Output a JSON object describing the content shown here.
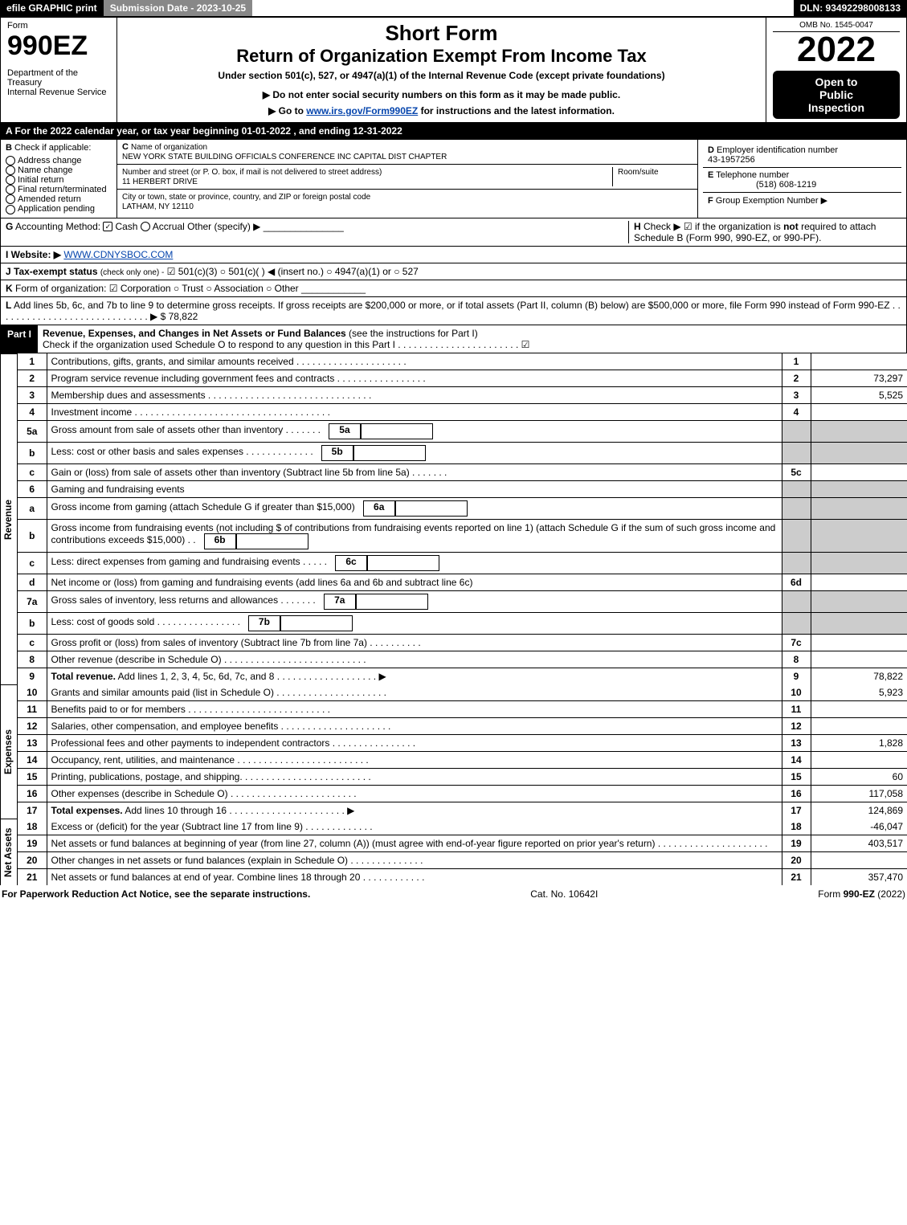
{
  "colors": {
    "black": "#000000",
    "white": "#ffffff",
    "gray_header": "#888888",
    "gray_fill": "#cccccc",
    "link": "#0645ad"
  },
  "topbar": {
    "efile": "efile GRAPHIC print",
    "sub_label": "Submission Date - 2023-10-25",
    "dln": "DLN: 93492298008133"
  },
  "header": {
    "form_word": "Form",
    "form_num": "990EZ",
    "dept1": "Department of the Treasury",
    "dept2": "Internal Revenue Service",
    "short_form": "Short Form",
    "title": "Return of Organization Exempt From Income Tax",
    "subtitle": "Under section 501(c), 527, or 4947(a)(1) of the Internal Revenue Code (except private foundations)",
    "note1": "▶ Do not enter social security numbers on this form as it may be made public.",
    "note2_pre": "▶ Go to ",
    "note2_link": "www.irs.gov/Form990EZ",
    "note2_post": " for instructions and the latest information.",
    "omb": "OMB No. 1545-0047",
    "year": "2022",
    "open1": "Open to",
    "open2": "Public",
    "open3": "Inspection"
  },
  "line_a": "A  For the 2022 calendar year, or tax year beginning 01-01-2022 , and ending 12-31-2022",
  "box_b": {
    "title": "B",
    "subtitle": "Check if applicable:",
    "opts": [
      "Address change",
      "Name change",
      "Initial return",
      "Final return/terminated",
      "Amended return",
      "Application pending"
    ]
  },
  "box_c": {
    "c_label": "C",
    "name_lbl": "Name of organization",
    "name_val": "NEW YORK STATE BUILDING OFFICIALS CONFERENCE INC CAPITAL DIST CHAPTER",
    "street_lbl": "Number and street (or P. O. box, if mail is not delivered to street address)",
    "room_lbl": "Room/suite",
    "street_val": "11 HERBERT DRIVE",
    "city_lbl": "City or town, state or province, country, and ZIP or foreign postal code",
    "city_val": "LATHAM, NY  12110"
  },
  "box_d": {
    "d_label": "D",
    "d_text": "Employer identification number",
    "d_val": "43-1957256",
    "e_label": "E",
    "e_text": "Telephone number",
    "e_val": "(518) 608-1219",
    "f_label": "F",
    "f_text": "Group Exemption Number",
    "f_arrow": "▶"
  },
  "line_g": {
    "label": "G",
    "text": "Accounting Method:",
    "cash": "Cash",
    "accrual": "Accrual",
    "other": "Other (specify) ▶"
  },
  "line_h": {
    "label": "H",
    "text": "Check ▶ ☑ if the organization is ",
    "not": "not",
    "text2": " required to attach Schedule B (Form 990, 990-EZ, or 990-PF)."
  },
  "line_i": {
    "label": "I Website: ▶",
    "val": "WWW.CDNYSBOC.COM"
  },
  "line_j": {
    "label": "J Tax-exempt status",
    "note": "(check only one) -",
    "opts": "☑ 501(c)(3)  ○ 501(c)(  ) ◀ (insert no.)  ○ 4947(a)(1) or  ○ 527"
  },
  "line_k": {
    "label": "K",
    "text": "Form of organization:",
    "opts": "☑ Corporation   ○ Trust   ○ Association   ○ Other"
  },
  "line_l": {
    "label": "L",
    "text": "Add lines 5b, 6c, and 7b to line 9 to determine gross receipts. If gross receipts are $200,000 or more, or if total assets (Part II, column (B) below) are $500,000 or more, file Form 990 instead of Form 990-EZ . . . . . . . . . . . . . . . . . . . . . . . . . . . . . ▶ $",
    "val": "78,822"
  },
  "part1": {
    "label": "Part I",
    "title": "Revenue, Expenses, and Changes in Net Assets or Fund Balances",
    "note": "(see the instructions for Part I)",
    "check_line": "Check if the organization used Schedule O to respond to any question in this Part I . . . . . . . . . . . . . . . . . . . . . . . ☑"
  },
  "sections": {
    "revenue": "Revenue",
    "expenses": "Expenses",
    "netassets": "Net Assets"
  },
  "lines": [
    {
      "n": "1",
      "desc": "Contributions, gifts, grants, and similar amounts received . . . . . . . . . . . . . . . . . . . . .",
      "ref": "1",
      "val": ""
    },
    {
      "n": "2",
      "desc": "Program service revenue including government fees and contracts . . . . . . . . . . . . . . . . .",
      "ref": "2",
      "val": "73,297"
    },
    {
      "n": "3",
      "desc": "Membership dues and assessments . . . . . . . . . . . . . . . . . . . . . . . . . . . . . . .",
      "ref": "3",
      "val": "5,525"
    },
    {
      "n": "4",
      "desc": "Investment income . . . . . . . . . . . . . . . . . . . . . . . . . . . . . . . . . . . . .",
      "ref": "4",
      "val": ""
    },
    {
      "n": "5a",
      "desc": "Gross amount from sale of assets other than inventory . . . . . . .",
      "sub": "5a",
      "subval": "",
      "gray": true
    },
    {
      "n": "b",
      "desc": "Less: cost or other basis and sales expenses . . . . . . . . . . . . .",
      "sub": "5b",
      "subval": "",
      "gray": true
    },
    {
      "n": "c",
      "desc": "Gain or (loss) from sale of assets other than inventory (Subtract line 5b from line 5a) . . . . . . .",
      "ref": "5c",
      "val": ""
    },
    {
      "n": "6",
      "desc": "Gaming and fundraising events",
      "gray": true,
      "noref": true
    },
    {
      "n": "a",
      "desc": "Gross income from gaming (attach Schedule G if greater than $15,000)",
      "sub": "6a",
      "subval": "",
      "gray": true
    },
    {
      "n": "b",
      "desc": "Gross income from fundraising events (not including $                       of contributions from fundraising events reported on line 1) (attach Schedule G if the sum of such gross income and contributions exceeds $15,000)   . .",
      "sub": "6b",
      "subval": "",
      "gray": true
    },
    {
      "n": "c",
      "desc": "Less: direct expenses from gaming and fundraising events   . . . . .",
      "sub": "6c",
      "subval": "",
      "gray": true
    },
    {
      "n": "d",
      "desc": "Net income or (loss) from gaming and fundraising events (add lines 6a and 6b and subtract line 6c)",
      "ref": "6d",
      "val": ""
    },
    {
      "n": "7a",
      "desc": "Gross sales of inventory, less returns and allowances . . . . . . .",
      "sub": "7a",
      "subval": "",
      "gray": true
    },
    {
      "n": "b",
      "desc": "Less: cost of goods sold      . . . . . . . . . . . . . . . .",
      "sub": "7b",
      "subval": "",
      "gray": true
    },
    {
      "n": "c",
      "desc": "Gross profit or (loss) from sales of inventory (Subtract line 7b from line 7a) . . . . . . . . . .",
      "ref": "7c",
      "val": ""
    },
    {
      "n": "8",
      "desc": "Other revenue (describe in Schedule O) . . . . . . . . . . . . . . . . . . . . . . . . . . .",
      "ref": "8",
      "val": ""
    },
    {
      "n": "9",
      "desc": "Total revenue. Add lines 1, 2, 3, 4, 5c, 6d, 7c, and 8  . . . . . . . . . . . . . . . . . . .  ▶",
      "ref": "9",
      "val": "78,822",
      "bold": true
    }
  ],
  "exp_lines": [
    {
      "n": "10",
      "desc": "Grants and similar amounts paid (list in Schedule O) . . . . . . . . . . . . . . . . . . . . .",
      "ref": "10",
      "val": "5,923"
    },
    {
      "n": "11",
      "desc": "Benefits paid to or for members      . . . . . . . . . . . . . . . . . . . . . . . . . . .",
      "ref": "11",
      "val": ""
    },
    {
      "n": "12",
      "desc": "Salaries, other compensation, and employee benefits . . . . . . . . . . . . . . . . . . . . .",
      "ref": "12",
      "val": ""
    },
    {
      "n": "13",
      "desc": "Professional fees and other payments to independent contractors . . . . . . . . . . . . . . . .",
      "ref": "13",
      "val": "1,828"
    },
    {
      "n": "14",
      "desc": "Occupancy, rent, utilities, and maintenance . . . . . . . . . . . . . . . . . . . . . . . . .",
      "ref": "14",
      "val": ""
    },
    {
      "n": "15",
      "desc": "Printing, publications, postage, and shipping. . . . . . . . . . . . . . . . . . . . . . . . .",
      "ref": "15",
      "val": "60"
    },
    {
      "n": "16",
      "desc": "Other expenses (describe in Schedule O)     . . . . . . . . . . . . . . . . . . . . . . . .",
      "ref": "16",
      "val": "117,058"
    },
    {
      "n": "17",
      "desc": "Total expenses. Add lines 10 through 16     . . . . . . . . . . . . . . . . . . . . . .  ▶",
      "ref": "17",
      "val": "124,869",
      "bold": true
    }
  ],
  "na_lines": [
    {
      "n": "18",
      "desc": "Excess or (deficit) for the year (Subtract line 17 from line 9)       . . . . . . . . . . . . .",
      "ref": "18",
      "val": "-46,047"
    },
    {
      "n": "19",
      "desc": "Net assets or fund balances at beginning of year (from line 27, column (A)) (must agree with end-of-year figure reported on prior year's return) . . . . . . . . . . . . . . . . . . . . .",
      "ref": "19",
      "val": "403,517"
    },
    {
      "n": "20",
      "desc": "Other changes in net assets or fund balances (explain in Schedule O) . . . . . . . . . . . . . .",
      "ref": "20",
      "val": ""
    },
    {
      "n": "21",
      "desc": "Net assets or fund balances at end of year. Combine lines 18 through 20 . . . . . . . . . . . .",
      "ref": "21",
      "val": "357,470"
    }
  ],
  "footer": {
    "left": "For Paperwork Reduction Act Notice, see the separate instructions.",
    "mid": "Cat. No. 10642I",
    "right_pre": "Form ",
    "right_b": "990-EZ",
    "right_post": " (2022)"
  }
}
